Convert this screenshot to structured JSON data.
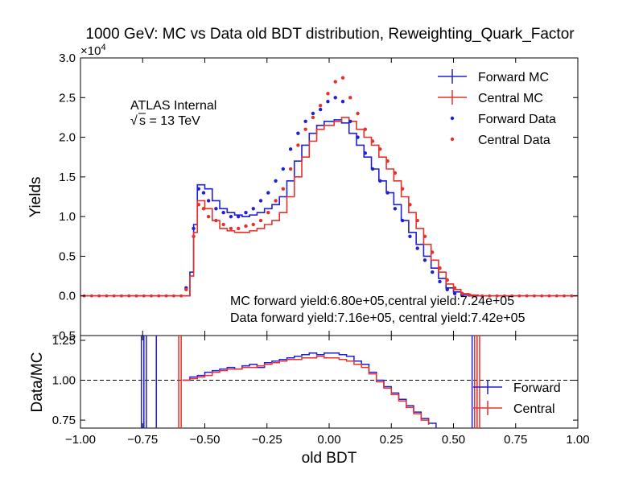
{
  "chart_data": [
    {
      "type": "line",
      "title": "1000 GeV: MC vs Data old BDT distribution, Reweighting_Quark_Factor",
      "ylabel": "Yields",
      "y_multiplier": "×10",
      "y_multiplier_exp": "4",
      "xlim": [
        -1.0,
        1.0
      ],
      "ylim": [
        -0.5,
        3.0
      ],
      "yticks": [
        "3.0",
        "2.5",
        "2.0",
        "1.5",
        "1.0",
        "0.5",
        "0.0",
        "−0.5"
      ],
      "grid": false,
      "legend_position": "top-right",
      "annotations": {
        "atlas": "ATLAS Internal",
        "sqrt_s": "s = 13 TeV",
        "mc_yield": "MC forward yield:6.80e+05,central yield:7.24e+05",
        "data_yield": "Data forward yield:7.16e+05, central yield:7.42e+05"
      },
      "series": [
        {
          "name": "Forward MC",
          "style": "step",
          "color": "#1f1fd6",
          "points": [
            [
              -1.0,
              0
            ],
            [
              -0.6,
              0
            ],
            [
              -0.56,
              0.3
            ],
            [
              -0.545,
              0.9
            ],
            [
              -0.53,
              1.4
            ],
            [
              -0.5,
              1.35
            ],
            [
              -0.47,
              1.2
            ],
            [
              -0.44,
              1.1
            ],
            [
              -0.41,
              1.05
            ],
            [
              -0.38,
              1.02
            ],
            [
              -0.35,
              1.0
            ],
            [
              -0.32,
              1.02
            ],
            [
              -0.29,
              1.05
            ],
            [
              -0.26,
              1.1
            ],
            [
              -0.23,
              1.15
            ],
            [
              -0.2,
              1.25
            ],
            [
              -0.17,
              1.45
            ],
            [
              -0.14,
              1.7
            ],
            [
              -0.11,
              1.9
            ],
            [
              -0.08,
              2.05
            ],
            [
              -0.05,
              2.15
            ],
            [
              -0.02,
              2.2
            ],
            [
              0.02,
              2.22
            ],
            [
              0.05,
              2.18
            ],
            [
              0.08,
              2.05
            ],
            [
              0.11,
              1.9
            ],
            [
              0.14,
              1.75
            ],
            [
              0.17,
              1.6
            ],
            [
              0.2,
              1.45
            ],
            [
              0.23,
              1.3
            ],
            [
              0.26,
              1.15
            ],
            [
              0.29,
              0.95
            ],
            [
              0.32,
              0.8
            ],
            [
              0.35,
              0.65
            ],
            [
              0.38,
              0.5
            ],
            [
              0.41,
              0.35
            ],
            [
              0.44,
              0.22
            ],
            [
              0.47,
              0.1
            ],
            [
              0.5,
              0.05
            ],
            [
              0.53,
              0.01
            ],
            [
              0.56,
              0
            ],
            [
              1.0,
              0
            ]
          ]
        },
        {
          "name": "Central MC",
          "style": "step",
          "color": "#e8302a",
          "points": [
            [
              -1.0,
              0
            ],
            [
              -0.6,
              0
            ],
            [
              -0.56,
              0.25
            ],
            [
              -0.545,
              0.8
            ],
            [
              -0.53,
              1.2
            ],
            [
              -0.5,
              1.1
            ],
            [
              -0.47,
              0.95
            ],
            [
              -0.44,
              0.85
            ],
            [
              -0.41,
              0.82
            ],
            [
              -0.38,
              0.8
            ],
            [
              -0.35,
              0.8
            ],
            [
              -0.32,
              0.82
            ],
            [
              -0.29,
              0.85
            ],
            [
              -0.26,
              0.9
            ],
            [
              -0.23,
              0.95
            ],
            [
              -0.2,
              1.05
            ],
            [
              -0.17,
              1.25
            ],
            [
              -0.14,
              1.5
            ],
            [
              -0.11,
              1.75
            ],
            [
              -0.08,
              1.95
            ],
            [
              -0.05,
              2.1
            ],
            [
              -0.02,
              2.15
            ],
            [
              0.02,
              2.2
            ],
            [
              0.05,
              2.25
            ],
            [
              0.08,
              2.2
            ],
            [
              0.11,
              2.1
            ],
            [
              0.14,
              2.0
            ],
            [
              0.17,
              1.9
            ],
            [
              0.2,
              1.75
            ],
            [
              0.23,
              1.6
            ],
            [
              0.26,
              1.45
            ],
            [
              0.29,
              1.25
            ],
            [
              0.32,
              1.05
            ],
            [
              0.35,
              0.85
            ],
            [
              0.38,
              0.65
            ],
            [
              0.41,
              0.45
            ],
            [
              0.44,
              0.3
            ],
            [
              0.47,
              0.15
            ],
            [
              0.5,
              0.08
            ],
            [
              0.53,
              0.03
            ],
            [
              0.56,
              0.01
            ],
            [
              0.6,
              0
            ],
            [
              1.0,
              0
            ]
          ]
        },
        {
          "name": "Forward Data",
          "style": "points",
          "color": "#1f1fd6",
          "points": [
            [
              -0.575,
              0.1
            ],
            [
              -0.545,
              0.85
            ],
            [
              -0.525,
              1.35
            ],
            [
              -0.505,
              1.3
            ],
            [
              -0.485,
              1.2
            ],
            [
              -0.455,
              1.1
            ],
            [
              -0.425,
              1.05
            ],
            [
              -0.395,
              1.0
            ],
            [
              -0.365,
              1.0
            ],
            [
              -0.335,
              1.05
            ],
            [
              -0.305,
              1.1
            ],
            [
              -0.275,
              1.2
            ],
            [
              -0.245,
              1.3
            ],
            [
              -0.215,
              1.45
            ],
            [
              -0.185,
              1.6
            ],
            [
              -0.155,
              1.85
            ],
            [
              -0.125,
              2.05
            ],
            [
              -0.095,
              2.2
            ],
            [
              -0.065,
              2.3
            ],
            [
              -0.035,
              2.35
            ],
            [
              -0.005,
              2.45
            ],
            [
              0.025,
              2.5
            ],
            [
              0.055,
              2.45
            ],
            [
              0.085,
              2.2
            ],
            [
              0.115,
              2.0
            ],
            [
              0.145,
              1.8
            ],
            [
              0.175,
              1.6
            ],
            [
              0.205,
              1.45
            ],
            [
              0.235,
              1.3
            ],
            [
              0.265,
              1.1
            ],
            [
              0.295,
              0.95
            ],
            [
              0.325,
              0.75
            ],
            [
              0.355,
              0.6
            ],
            [
              0.385,
              0.45
            ],
            [
              0.415,
              0.3
            ],
            [
              0.445,
              0.18
            ],
            [
              0.475,
              0.08
            ],
            [
              0.505,
              0.03
            ],
            [
              0.535,
              0.01
            ]
          ]
        },
        {
          "name": "Central Data",
          "style": "points",
          "color": "#e8302a",
          "points": [
            [
              -0.575,
              0.08
            ],
            [
              -0.545,
              0.75
            ],
            [
              -0.525,
              1.15
            ],
            [
              -0.505,
              1.1
            ],
            [
              -0.485,
              1.0
            ],
            [
              -0.455,
              0.95
            ],
            [
              -0.425,
              0.9
            ],
            [
              -0.395,
              0.85
            ],
            [
              -0.365,
              0.85
            ],
            [
              -0.335,
              0.88
            ],
            [
              -0.305,
              0.9
            ],
            [
              -0.275,
              0.95
            ],
            [
              -0.245,
              1.05
            ],
            [
              -0.215,
              1.2
            ],
            [
              -0.185,
              1.35
            ],
            [
              -0.155,
              1.6
            ],
            [
              -0.125,
              1.9
            ],
            [
              -0.095,
              2.1
            ],
            [
              -0.065,
              2.25
            ],
            [
              -0.035,
              2.4
            ],
            [
              -0.005,
              2.55
            ],
            [
              0.025,
              2.7
            ],
            [
              0.055,
              2.75
            ],
            [
              0.085,
              2.5
            ],
            [
              0.115,
              2.3
            ],
            [
              0.145,
              2.1
            ],
            [
              0.175,
              1.95
            ],
            [
              0.205,
              1.85
            ],
            [
              0.235,
              1.7
            ],
            [
              0.265,
              1.55
            ],
            [
              0.295,
              1.35
            ],
            [
              0.325,
              1.15
            ],
            [
              0.355,
              0.95
            ],
            [
              0.385,
              0.75
            ],
            [
              0.415,
              0.55
            ],
            [
              0.445,
              0.35
            ],
            [
              0.475,
              0.2
            ],
            [
              0.505,
              0.1
            ],
            [
              0.535,
              0.03
            ],
            [
              0.565,
              0.01
            ]
          ]
        }
      ]
    },
    {
      "type": "line",
      "xlabel": "old BDT",
      "ylabel": "Data/MC",
      "xlim": [
        -1.0,
        1.0
      ],
      "ylim": [
        0.7,
        1.28
      ],
      "yticks": [
        "1.25",
        "1.00",
        "0.75"
      ],
      "xticks": [
        "−1.00",
        "−0.75",
        "−0.50",
        "−0.25",
        "0.00",
        "0.25",
        "0.50",
        "0.75",
        "1.00"
      ],
      "reference_line": 1.0,
      "legend_position": "right",
      "series": [
        {
          "name": "Forward",
          "color": "#1f1fd6",
          "points": [
            [
              -0.59,
              1.0
            ],
            [
              -0.56,
              1.02
            ],
            [
              -0.53,
              1.03
            ],
            [
              -0.5,
              1.05
            ],
            [
              -0.47,
              1.06
            ],
            [
              -0.44,
              1.07
            ],
            [
              -0.41,
              1.08
            ],
            [
              -0.38,
              1.07
            ],
            [
              -0.35,
              1.09
            ],
            [
              -0.32,
              1.1
            ],
            [
              -0.29,
              1.08
            ],
            [
              -0.26,
              1.11
            ],
            [
              -0.23,
              1.12
            ],
            [
              -0.2,
              1.13
            ],
            [
              -0.17,
              1.14
            ],
            [
              -0.14,
              1.15
            ],
            [
              -0.11,
              1.16
            ],
            [
              -0.08,
              1.17
            ],
            [
              -0.05,
              1.16
            ],
            [
              -0.02,
              1.17
            ],
            [
              0.01,
              1.17
            ],
            [
              0.04,
              1.16
            ],
            [
              0.07,
              1.15
            ],
            [
              0.1,
              1.12
            ],
            [
              0.13,
              1.1
            ],
            [
              0.16,
              1.05
            ],
            [
              0.19,
              1.0
            ],
            [
              0.22,
              0.96
            ],
            [
              0.25,
              0.92
            ],
            [
              0.28,
              0.88
            ],
            [
              0.31,
              0.84
            ],
            [
              0.34,
              0.8
            ],
            [
              0.37,
              0.76
            ],
            [
              0.4,
              0.73
            ],
            [
              0.43,
              0.7
            ]
          ]
        },
        {
          "name": "Central",
          "color": "#e8302a",
          "points": [
            [
              -0.59,
              1.0
            ],
            [
              -0.56,
              1.01
            ],
            [
              -0.53,
              1.02
            ],
            [
              -0.5,
              1.03
            ],
            [
              -0.47,
              1.05
            ],
            [
              -0.44,
              1.06
            ],
            [
              -0.41,
              1.07
            ],
            [
              -0.38,
              1.07
            ],
            [
              -0.35,
              1.08
            ],
            [
              -0.32,
              1.08
            ],
            [
              -0.29,
              1.09
            ],
            [
              -0.26,
              1.1
            ],
            [
              -0.23,
              1.11
            ],
            [
              -0.2,
              1.12
            ],
            [
              -0.17,
              1.13
            ],
            [
              -0.14,
              1.13
            ],
            [
              -0.11,
              1.14
            ],
            [
              -0.08,
              1.14
            ],
            [
              -0.05,
              1.15
            ],
            [
              -0.02,
              1.14
            ],
            [
              0.01,
              1.14
            ],
            [
              0.04,
              1.13
            ],
            [
              0.07,
              1.12
            ],
            [
              0.1,
              1.1
            ],
            [
              0.13,
              1.08
            ],
            [
              0.16,
              1.04
            ],
            [
              0.19,
              0.99
            ],
            [
              0.22,
              0.95
            ],
            [
              0.25,
              0.91
            ],
            [
              0.28,
              0.87
            ],
            [
              0.31,
              0.83
            ],
            [
              0.34,
              0.79
            ],
            [
              0.37,
              0.75
            ],
            [
              0.4,
              0.72
            ]
          ]
        }
      ]
    }
  ]
}
